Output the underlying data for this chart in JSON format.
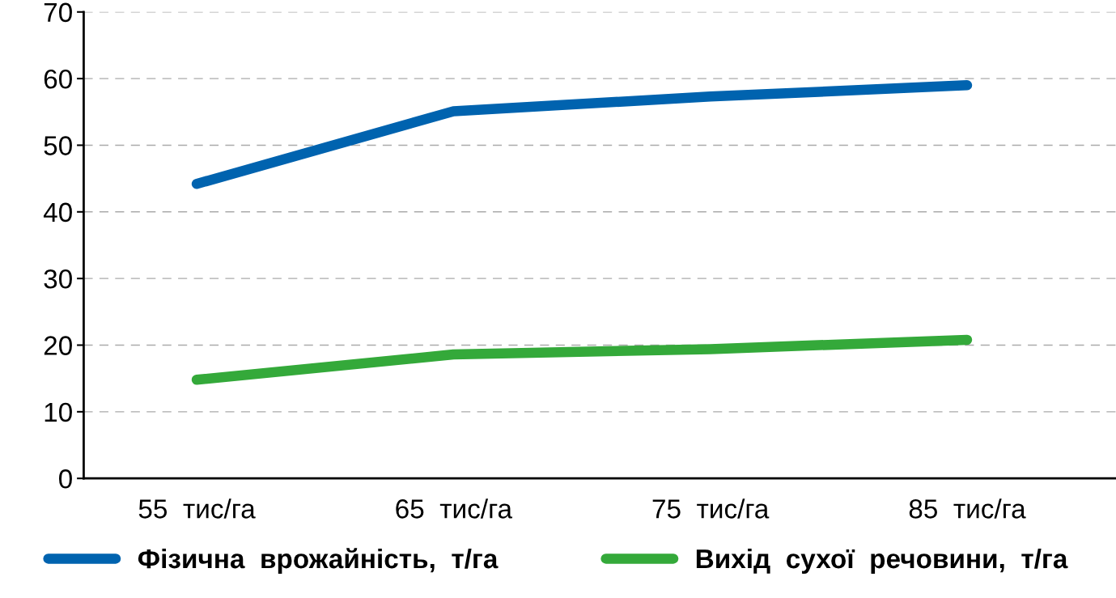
{
  "chart_data": {
    "type": "line",
    "categories": [
      "55  тис/га",
      "65  тис/га",
      "75  тис/га",
      "85  тис/га"
    ],
    "series": [
      {
        "name": "Фізична  врожайність,  т/га",
        "color": "#0063af",
        "values": [
          44.2,
          55.1,
          57.3,
          59.0
        ]
      },
      {
        "name": "Вихід  сухої  речовини,  т/га",
        "color": "#34a93a",
        "values": [
          14.8,
          18.6,
          19.4,
          20.8
        ]
      }
    ],
    "ylim": [
      0,
      70
    ],
    "yticks": [
      0,
      10,
      20,
      30,
      40,
      50,
      60,
      70
    ],
    "grid": "y",
    "legend": "bottom",
    "line_style": "solid"
  }
}
